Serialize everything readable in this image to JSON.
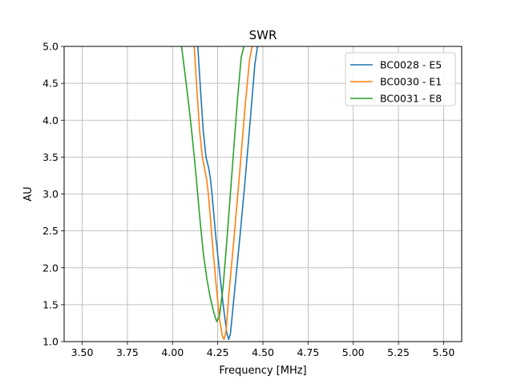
{
  "chart_data": {
    "type": "line",
    "title": "SWR",
    "xlabel": "Frequency [MHz]",
    "ylabel": "AU",
    "xlim": [
      3.4,
      5.6
    ],
    "ylim": [
      1.0,
      5.0
    ],
    "xticks": [
      "3.50",
      "3.75",
      "4.00",
      "4.25",
      "4.50",
      "4.75",
      "5.00",
      "5.25",
      "5.50"
    ],
    "yticks": [
      "1.0",
      "1.5",
      "2.0",
      "2.5",
      "3.0",
      "3.5",
      "4.0",
      "4.5",
      "5.0"
    ],
    "grid": true,
    "legend_position": "top-right",
    "series": [
      {
        "name": "BC0028 - E5",
        "color": "#1f77b4",
        "x": [
          4.14,
          4.155,
          4.17,
          4.185,
          4.2,
          4.21,
          4.22,
          4.24,
          4.26,
          4.28,
          4.3,
          4.31,
          4.32,
          4.34,
          4.37,
          4.4,
          4.43,
          4.455,
          4.47
        ],
        "y": [
          5.0,
          4.4,
          3.85,
          3.5,
          3.35,
          3.2,
          2.95,
          2.4,
          1.95,
          1.5,
          1.12,
          1.03,
          1.1,
          1.6,
          2.35,
          3.15,
          4.0,
          4.75,
          5.0
        ]
      },
      {
        "name": "BC0030 - E1",
        "color": "#ff7f0e",
        "x": [
          4.12,
          4.135,
          4.15,
          4.165,
          4.18,
          4.19,
          4.2,
          4.22,
          4.24,
          4.26,
          4.275,
          4.285,
          4.295,
          4.31,
          4.34,
          4.37,
          4.4,
          4.425,
          4.44
        ],
        "y": [
          5.0,
          4.4,
          3.85,
          3.5,
          3.3,
          3.18,
          2.95,
          2.35,
          1.8,
          1.3,
          1.08,
          1.03,
          1.12,
          1.6,
          2.4,
          3.25,
          4.15,
          4.8,
          5.0
        ]
      },
      {
        "name": "BC0031 - E8",
        "color": "#2ca02c",
        "x": [
          4.05,
          4.07,
          4.09,
          4.11,
          4.13,
          4.15,
          4.17,
          4.19,
          4.21,
          4.23,
          4.245,
          4.26,
          4.28,
          4.3,
          4.32,
          4.34,
          4.36,
          4.38,
          4.395
        ],
        "y": [
          5.0,
          4.6,
          4.2,
          3.75,
          3.25,
          2.7,
          2.2,
          1.85,
          1.58,
          1.38,
          1.27,
          1.35,
          1.75,
          2.35,
          3.0,
          3.65,
          4.3,
          4.85,
          5.0
        ]
      }
    ]
  }
}
